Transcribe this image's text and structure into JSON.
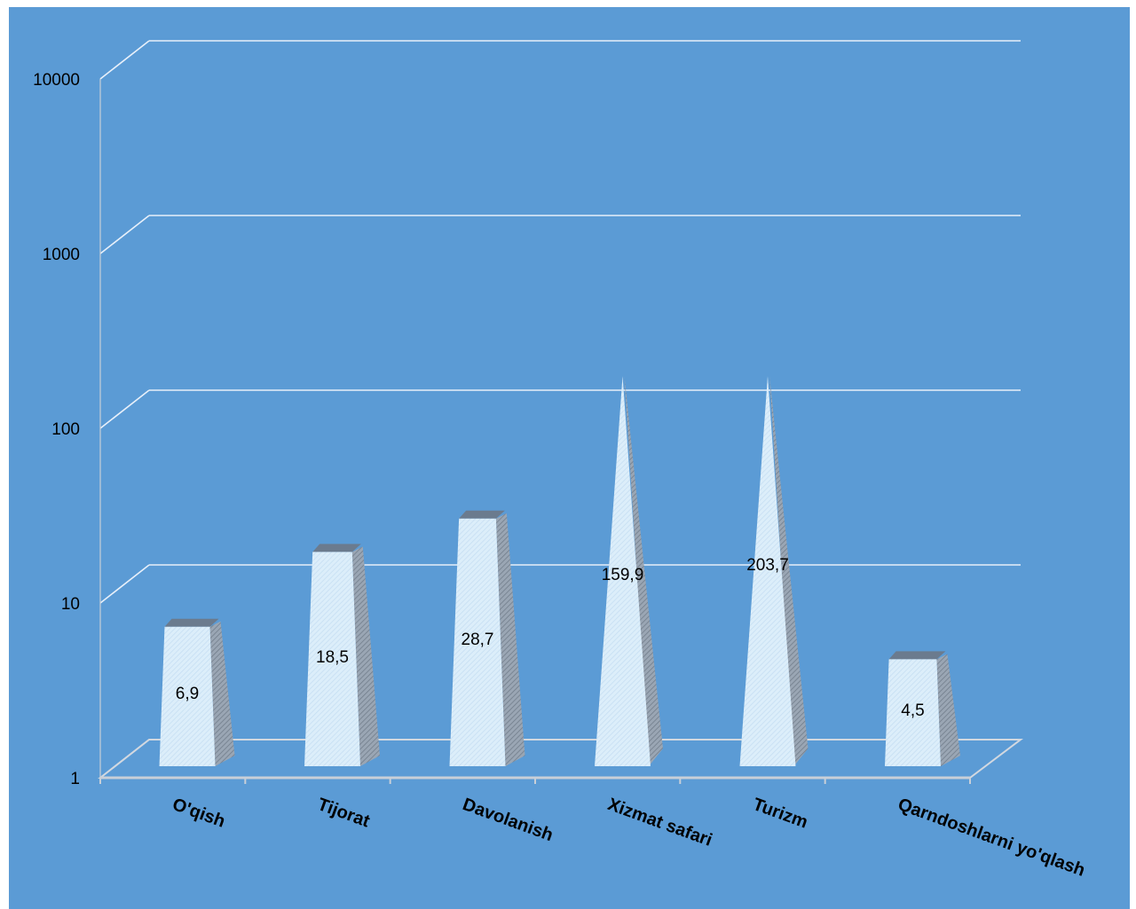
{
  "chart_data": {
    "type": "bar",
    "style": "3d-pyramid",
    "categories": [
      "O'qish",
      "Tijorat",
      "Davolanish",
      "Xizmat safari",
      "Turizm",
      "Qarndoshlarni yo'qlash"
    ],
    "values": [
      6.9,
      18.5,
      28.7,
      159.9,
      203.7,
      4.5
    ],
    "data_labels": [
      "6,9",
      "18,5",
      "28,7",
      "159,9",
      "203,7",
      "4,5"
    ],
    "y_scale": "log10",
    "ylim": [
      1,
      10000
    ],
    "y_ticks": [
      1,
      10,
      100,
      1000,
      10000
    ],
    "y_tick_labels": [
      "1",
      "10",
      "100",
      "1000",
      "10000"
    ],
    "grid": true,
    "legend": "none",
    "colors": {
      "plot_background": "#5b9bd5",
      "bar_fill": "#dceefa",
      "bar_side": "#8e9aa8",
      "gridline": "#e8f0fa",
      "axis": "#c8cfd8"
    }
  }
}
